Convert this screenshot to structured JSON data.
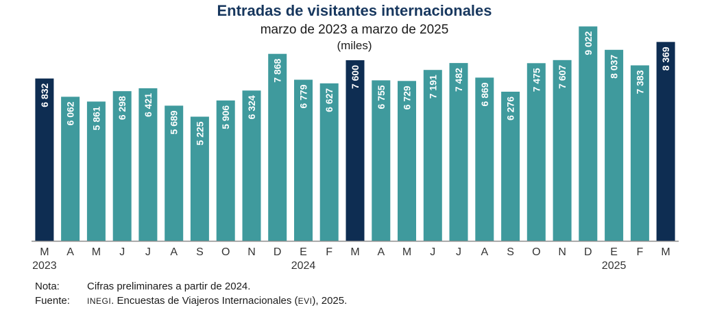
{
  "chart_data": {
    "type": "bar",
    "title": "Entradas de visitantes internacionales",
    "subtitle": "marzo de 2023 a marzo de 2025",
    "unit": "(miles)",
    "categories": [
      "M",
      "A",
      "M",
      "J",
      "J",
      "A",
      "S",
      "O",
      "N",
      "D",
      "E",
      "F",
      "M",
      "A",
      "M",
      "J",
      "J",
      "A",
      "S",
      "O",
      "N",
      "D",
      "E",
      "F",
      "M"
    ],
    "year_labels": [
      "2023",
      "",
      "",
      "",
      "",
      "",
      "",
      "",
      "",
      "",
      "2024",
      "",
      "",
      "",
      "",
      "",
      "",
      "",
      "",
      "",
      "",
      "",
      "2025",
      "",
      ""
    ],
    "values": [
      6832,
      6062,
      5861,
      6298,
      6421,
      5689,
      5225,
      5906,
      6324,
      7868,
      6779,
      6627,
      7600,
      6755,
      6729,
      7191,
      7482,
      6869,
      6276,
      7475,
      7607,
      9022,
      8037,
      7383,
      8369
    ],
    "value_labels": [
      "6 832",
      "6 062",
      "5 861",
      "6 298",
      "6 421",
      "5 689",
      "5 225",
      "5 906",
      "6 324",
      "7 868",
      "6 779",
      "6 627",
      "7 600",
      "6 755",
      "6 729",
      "7 191",
      "7 482",
      "6 869",
      "6 276",
      "7 475",
      "7 607",
      "9 022",
      "8 037",
      "7 383",
      "8 369"
    ],
    "highlighted": [
      0,
      12,
      24
    ],
    "colors": {
      "highlight": "#0e2d52",
      "regular": "#3f9a9d",
      "axis": "#8c8c8c"
    },
    "ylim": [
      0,
      9500
    ],
    "xlabel": "",
    "ylabel": ""
  },
  "notes": {
    "nota_label": "Nota:",
    "nota_text": "Cifras preliminares a partir de 2024.",
    "fuente_label": "Fuente:",
    "fuente_org": "INEGI",
    "fuente_text_1": ". Encuestas de Viajeros Internacionales (",
    "fuente_abbr": "EVI",
    "fuente_text_2": "), 2025."
  }
}
